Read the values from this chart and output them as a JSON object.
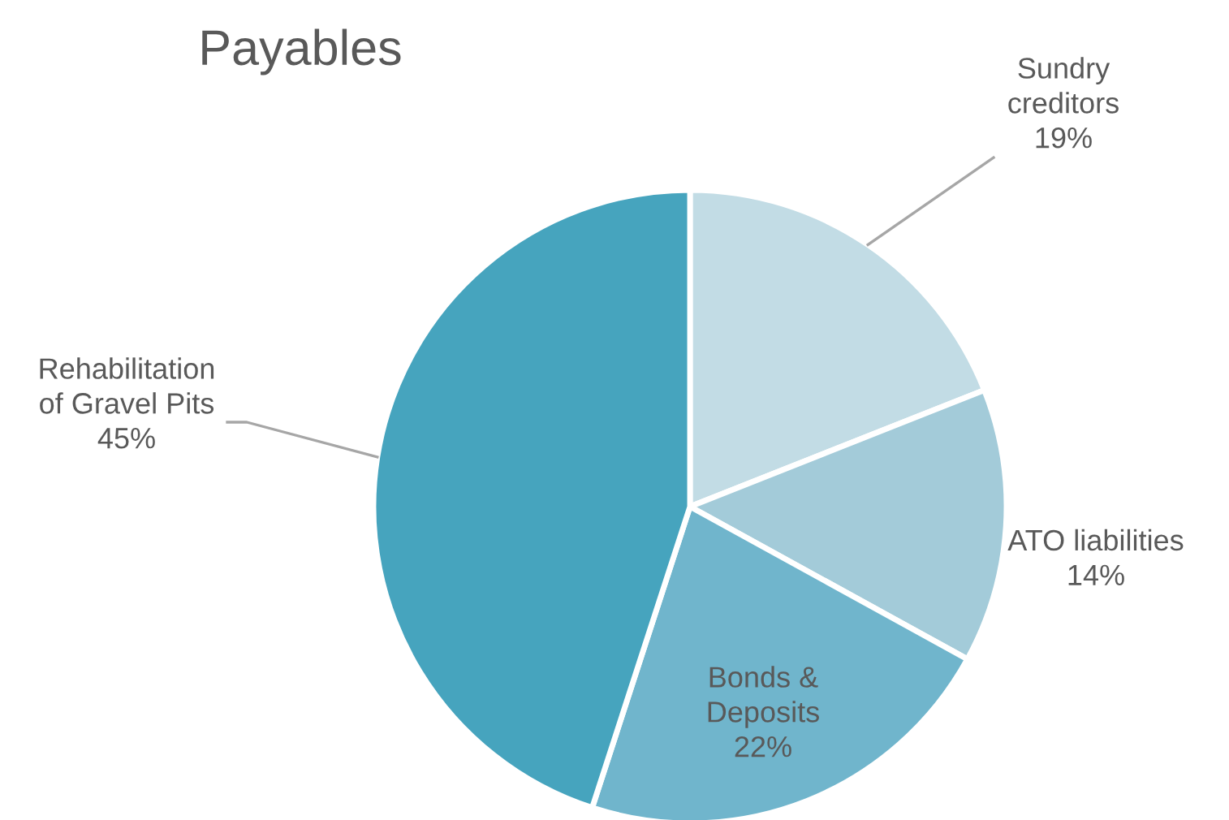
{
  "chart_data": {
    "type": "pie",
    "title": "Payables",
    "categories": [
      "Sundry\ncreditors",
      "ATO liabilities",
      "Bonds &\nDeposits",
      "Rehabilitation\nof Gravel Pits"
    ],
    "values": [
      19,
      14,
      22,
      45
    ],
    "colors": [
      "#c2dce5",
      "#a3cbd9",
      "#70b5cc",
      "#46a4be"
    ],
    "value_labels": [
      "19%",
      "14%",
      "22%",
      "45%"
    ],
    "legend": false
  }
}
